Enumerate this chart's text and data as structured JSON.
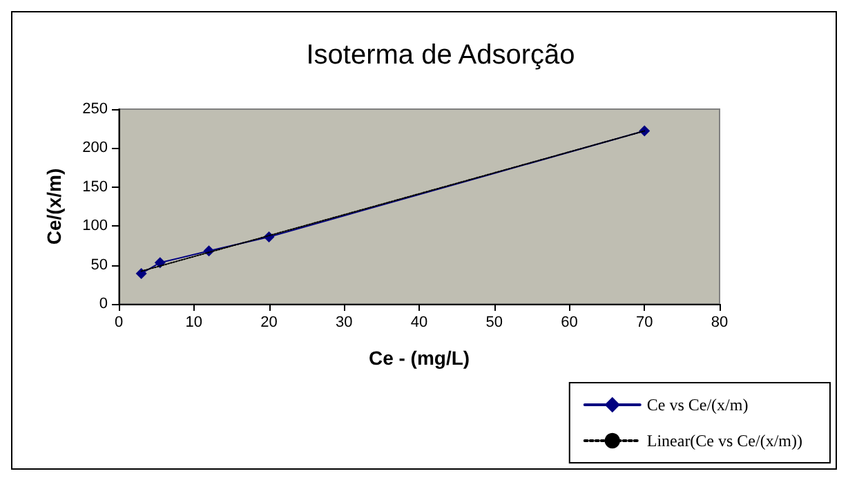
{
  "chart_data": {
    "type": "line",
    "title": "Isoterma de Adsorção",
    "xlabel": "Ce - (mg/L)",
    "ylabel": "Ce/(x/m)",
    "x": [
      3,
      5.5,
      12,
      20,
      70
    ],
    "series": [
      {
        "name": "Ce vs Ce/(x/m)",
        "color": "#000080",
        "values": [
          39,
          53,
          68,
          86,
          222
        ],
        "marker": "diamond",
        "line_style": "solid"
      },
      {
        "name": "Linear(Ce vs Ce/(x/m))",
        "color": "#000000",
        "type": "line",
        "x": [
          3,
          70
        ],
        "values": [
          42,
          222
        ],
        "marker": "none",
        "line_style": "dotted"
      }
    ],
    "xlim": [
      0,
      80
    ],
    "xticks": [
      0,
      10,
      20,
      30,
      40,
      50,
      60,
      70,
      80
    ],
    "ylim": [
      0,
      250
    ],
    "yticks": [
      0,
      50,
      100,
      150,
      200,
      250
    ],
    "grid": false,
    "legend": "bottom right"
  }
}
